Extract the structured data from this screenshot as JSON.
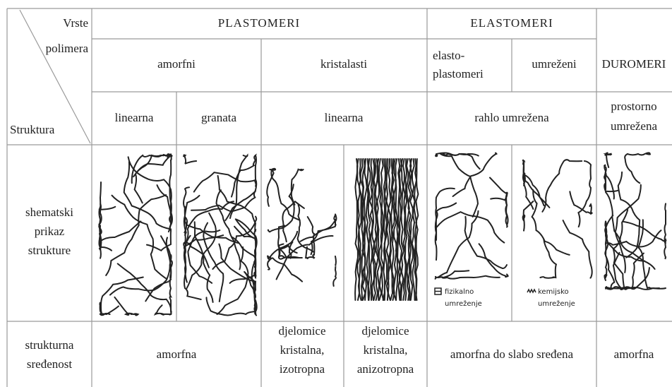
{
  "header": {
    "vrste": "Vrste",
    "polimera": "polimera",
    "struktura": "Struktura"
  },
  "groups": {
    "plastomeri": "PLASTOMERI",
    "elastomeri": "ELASTOMERI",
    "duromeri": "DUROMERI"
  },
  "subgroups": {
    "amorfni": "amorfni",
    "kristalasti": "kristalasti",
    "elastoplastomeri": [
      "elasto-",
      "plastomeri"
    ],
    "umrezeni": "umreženi"
  },
  "structure": {
    "linearna_amorfni": "linearna",
    "granata": "granata",
    "linearna_kristalasti": "linearna",
    "rahlo": "rahlo umrežena",
    "prostorno": [
      "prostorno",
      "umrežena"
    ]
  },
  "schematic_row": {
    "label": [
      "shematski",
      "prikaz",
      "strukture"
    ],
    "legend_physical": [
      "fizikalno",
      "umreženje"
    ],
    "legend_chemical": [
      "kemijsko",
      "umreženje"
    ]
  },
  "order_row": {
    "label": [
      "strukturna",
      "sređenost"
    ],
    "amorfni": "amorfna",
    "izotropna": [
      "djelomice",
      "kristalna,",
      "izotropna"
    ],
    "anizotropna": [
      "djelomice",
      "kristalna,",
      "anizotropna"
    ],
    "elastomeri": "amorfna do slabo sređena",
    "duromeri": "amorfna"
  }
}
